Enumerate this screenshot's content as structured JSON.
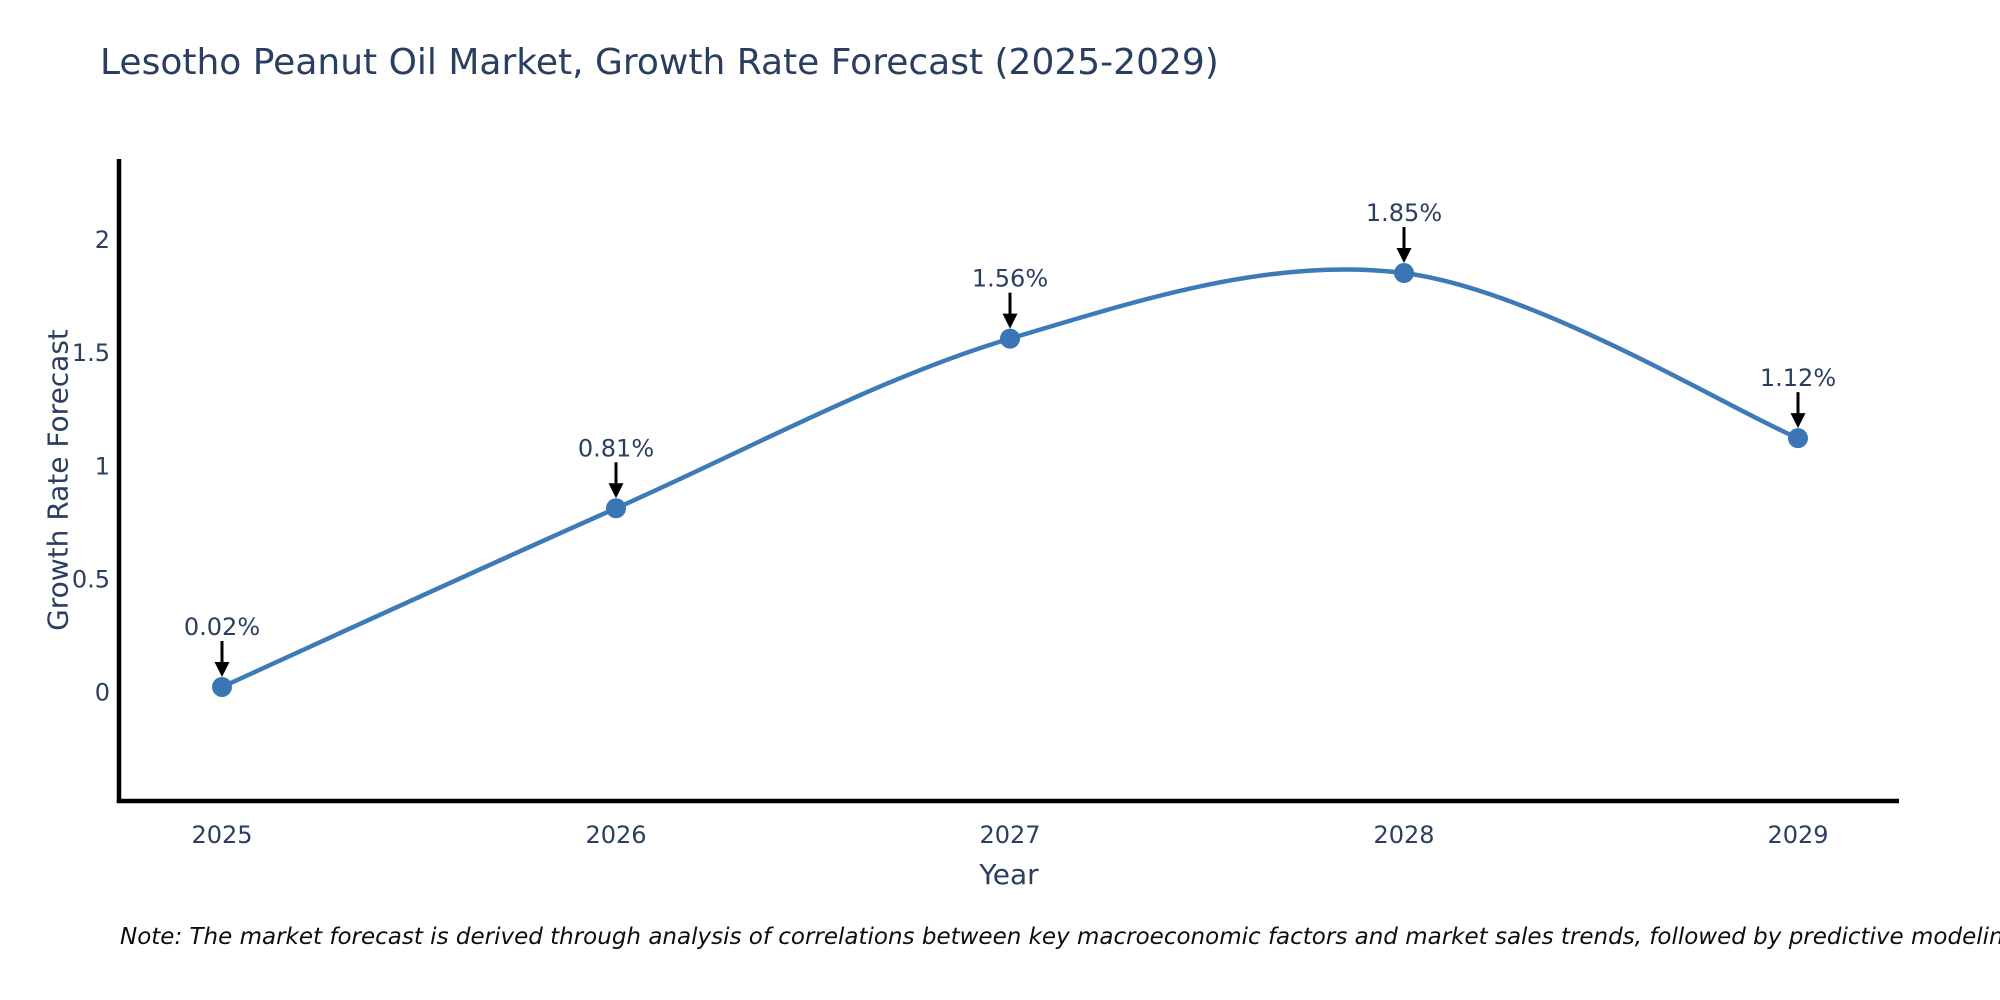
{
  "title": "Lesotho Peanut Oil Market, Growth Rate Forecast (2025-2029)",
  "note": "Note: The market forecast is derived through analysis of correlations between key macroeconomic factors and market sales trends, followed by predictive modeling to project future sales",
  "colors": {
    "title_text": "#2a3f5f",
    "tick_text": "#2a3f5f",
    "annotation_text": "#2a3f5f",
    "line": "#3d7ab8",
    "marker": "#3a76b4",
    "axis_line": "#000000",
    "arrow": "#000000",
    "note_text": "#0d0d0d",
    "background": "#ffffff"
  },
  "chart_data": {
    "type": "line",
    "title": "Lesotho Peanut Oil Market, Growth Rate Forecast (2025-2029)",
    "xlabel": "Year",
    "ylabel": "Growth Rate Forecast",
    "x": [
      2025,
      2026,
      2027,
      2028,
      2029
    ],
    "values": [
      0.02,
      0.81,
      1.56,
      1.85,
      1.12
    ],
    "point_labels": [
      "0.02%",
      "0.81%",
      "1.56%",
      "1.85%",
      "1.12%"
    ],
    "xtick_labels": [
      "2025",
      "2026",
      "2027",
      "2028",
      "2029"
    ],
    "ytick_values": [
      0,
      0.5,
      1,
      1.5,
      2
    ],
    "ytick_labels": [
      "0",
      "0.5",
      "1",
      "1.5",
      "2"
    ],
    "ylim": [
      -0.48,
      2.35
    ],
    "line_shape": "spline",
    "markers": "circle",
    "grid": false,
    "legend": "none",
    "annotation_arrows": true
  }
}
